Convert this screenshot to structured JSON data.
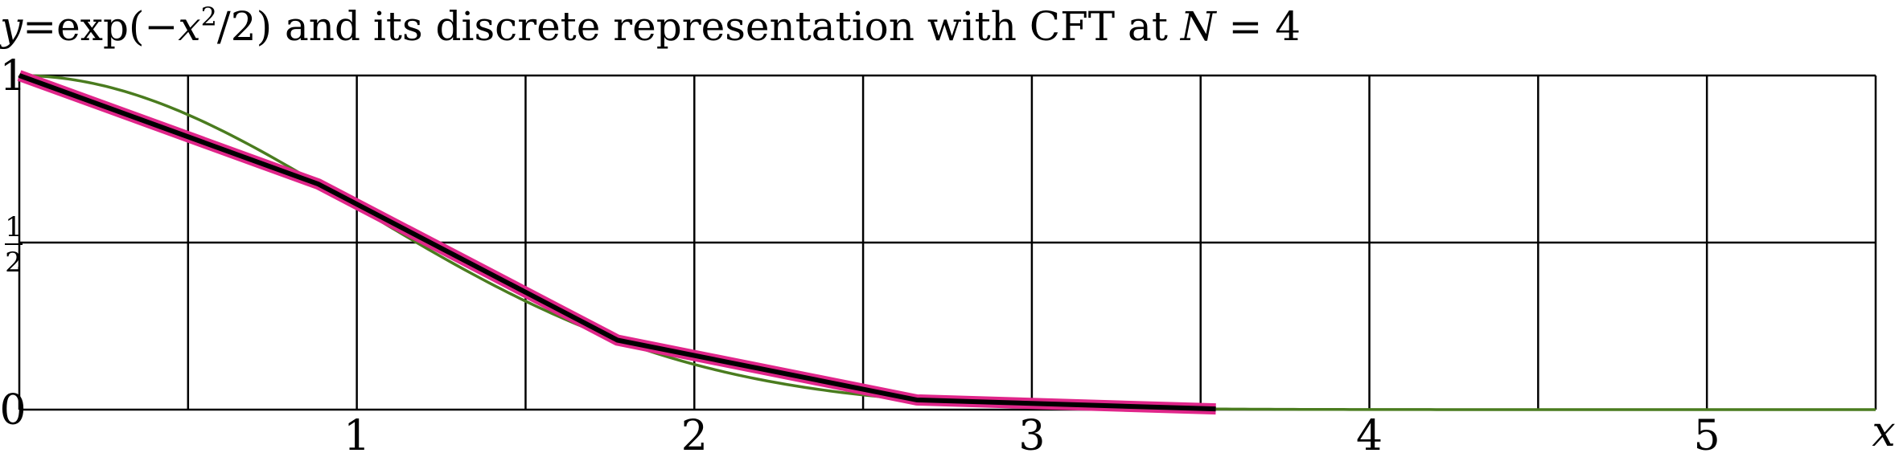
{
  "chart_data": {
    "type": "line",
    "title": {
      "y_symbol": "y",
      "equals": "=",
      "expr_before_exp": "exp(−",
      "x_symbol": "x",
      "exponent": "2",
      "expr_after_exp": "/2) and its discrete representation with CFT at ",
      "n_symbol": "N",
      "n_equals": " = ",
      "n_value": "4"
    },
    "xlabel": "x",
    "ylabel": "",
    "xlim": [
      0,
      5.5
    ],
    "ylim": [
      0,
      1
    ],
    "x_ticks": [
      {
        "value": 1,
        "label": "1"
      },
      {
        "value": 2,
        "label": "2"
      },
      {
        "value": 3,
        "label": "3"
      },
      {
        "value": 4,
        "label": "4"
      },
      {
        "value": 5,
        "label": "5"
      }
    ],
    "y_ticks": [
      {
        "value": 0,
        "label": "0"
      },
      {
        "value": 0.5,
        "numerator": "1",
        "denominator": "2"
      },
      {
        "value": 1,
        "label": "1"
      }
    ],
    "grid": {
      "x_step": 0.5,
      "y_step": 0.5,
      "on": true
    },
    "series": [
      {
        "kind": "function",
        "expression": "exp(-x^2/2)",
        "x_range": [
          0,
          5.5
        ],
        "color": "#4a7c1f"
      },
      {
        "kind": "discrete",
        "x": [
          0,
          0.886,
          1.772,
          2.659,
          3.545
        ],
        "y": [
          1,
          0.675,
          0.208,
          0.029,
          0.002
        ],
        "color": "#000000",
        "outline_color": "#e0268a"
      }
    ]
  }
}
